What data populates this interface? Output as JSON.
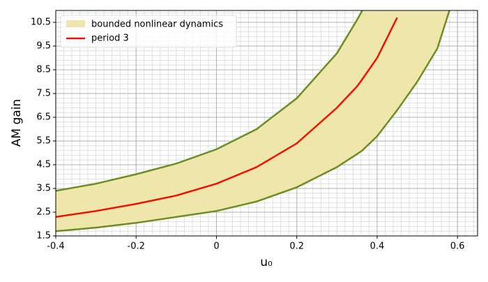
{
  "chart_data": {
    "type": "band-line",
    "xlabel": "u₀",
    "ylabel": "AM gain",
    "x": [
      -0.4,
      -0.3,
      -0.2,
      -0.1,
      0,
      0.1,
      0.2,
      0.3,
      0.35,
      0.363,
      0.4,
      0.45,
      0.5,
      0.55,
      0.58
    ],
    "band": {
      "name": "bounded nonlinear dynamics",
      "color": "#eee6aa",
      "edge_color": "#6b8e23",
      "upper": [
        3.4,
        3.7,
        4.1,
        4.55,
        5.15,
        6.0,
        7.3,
        9.2,
        10.6,
        11.0,
        null,
        null,
        null,
        null,
        null
      ],
      "lower": [
        1.7,
        1.85,
        2.05,
        2.3,
        2.55,
        2.95,
        3.55,
        4.4,
        4.95,
        5.1,
        5.7,
        6.8,
        8.0,
        9.4,
        11.0
      ]
    },
    "series": [
      {
        "name": "period 3",
        "color": "#ee1100",
        "values": [
          2.3,
          2.55,
          2.85,
          3.2,
          3.7,
          4.4,
          5.4,
          6.9,
          7.8,
          8.1,
          9.0,
          10.7,
          null,
          null,
          null
        ]
      }
    ],
    "xlim": [
      -0.4,
      0.65
    ],
    "ylim": [
      1.5,
      11
    ],
    "xticks": [
      -0.4,
      -0.2,
      0.0,
      0.2,
      0.4,
      0.6
    ],
    "yticks": [
      1.5,
      2.5,
      3.5,
      4.5,
      5.5,
      6.5,
      7.5,
      8.5,
      9.5,
      10.5
    ],
    "grid": true,
    "minor_grid": true,
    "legend": "upper left"
  }
}
